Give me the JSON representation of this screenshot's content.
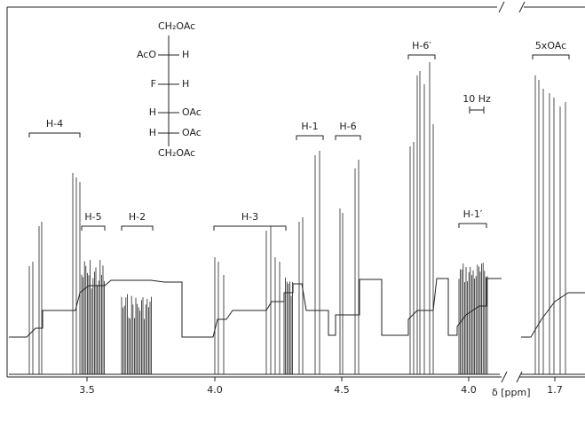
{
  "structure": {
    "top": "CH₂OAc",
    "rows": [
      [
        "AcO",
        "H"
      ],
      [
        "F",
        "H"
      ],
      [
        "H",
        "OAc"
      ],
      [
        "H",
        "OAc"
      ]
    ],
    "bottom": "CH₂OAc"
  },
  "labels": [
    "H-4",
    "H-5",
    "H-2",
    "H-3",
    "H-1",
    "H-6",
    "H-6′",
    "H-1′",
    "5xOAc"
  ],
  "scale": "10 Hz",
  "axis": {
    "label": "δ [ppm]",
    "ticks": [
      "3.5",
      "4.0",
      "4.5",
      "4.0",
      "1.7"
    ]
  }
}
